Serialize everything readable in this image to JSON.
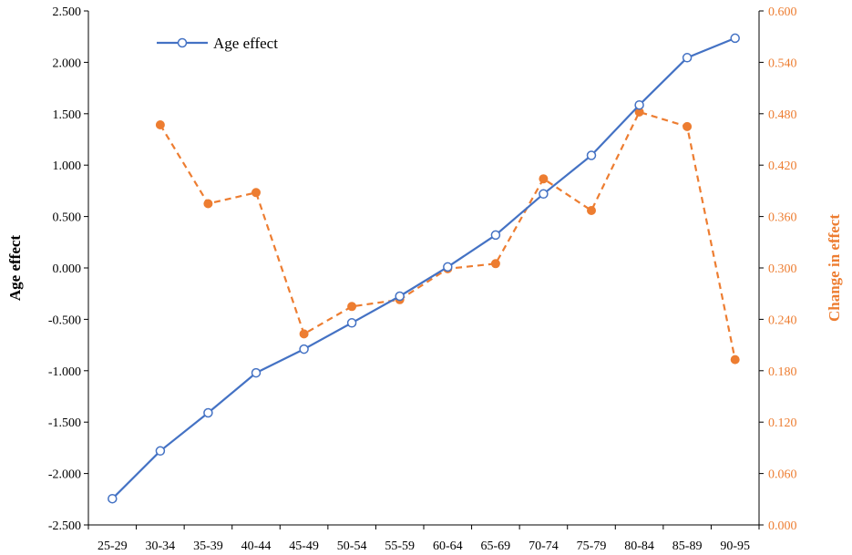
{
  "chart_data": {
    "type": "line",
    "categories": [
      "25-29",
      "30-34",
      "35-39",
      "40-44",
      "45-49",
      "50-54",
      "55-59",
      "60-64",
      "65-69",
      "70-74",
      "75-79",
      "80-84",
      "85-89",
      "90-95"
    ],
    "ylabel": "Age effect",
    "ylim": [
      -2.5,
      2.5
    ],
    "yticks": [
      "2.500",
      "2.000",
      "1.500",
      "1.000",
      "0.500",
      "0.000",
      "-0.500",
      "-1.000",
      "-1.500",
      "-2.000",
      "-2.500"
    ],
    "y2label": "Change in effect",
    "y2lim": [
      0,
      0.6
    ],
    "y2ticks": [
      "0.600",
      "0.540",
      "0.480",
      "0.420",
      "0.360",
      "0.300",
      "0.240",
      "0.180",
      "0.120",
      "0.060",
      "0.000"
    ],
    "legend": {
      "placement": "top-left",
      "entries": [
        "Age effect"
      ]
    },
    "series": [
      {
        "name": "Age effect",
        "axis": "left",
        "color": "#4472C4",
        "style": "solid",
        "marker": "open-circle",
        "values": [
          -2.245,
          -1.78,
          -1.41,
          -1.02,
          -0.79,
          -0.535,
          -0.275,
          0.01,
          0.32,
          0.72,
          1.095,
          1.585,
          2.045,
          2.235
        ]
      },
      {
        "axis": "right",
        "color": "#ED7D31",
        "style": "dashed",
        "marker": "filled-circle",
        "values": [
          null,
          0.467,
          0.375,
          0.388,
          0.223,
          0.255,
          0.263,
          0.299,
          0.305,
          0.404,
          0.367,
          0.482,
          0.465,
          0.193
        ]
      }
    ]
  }
}
